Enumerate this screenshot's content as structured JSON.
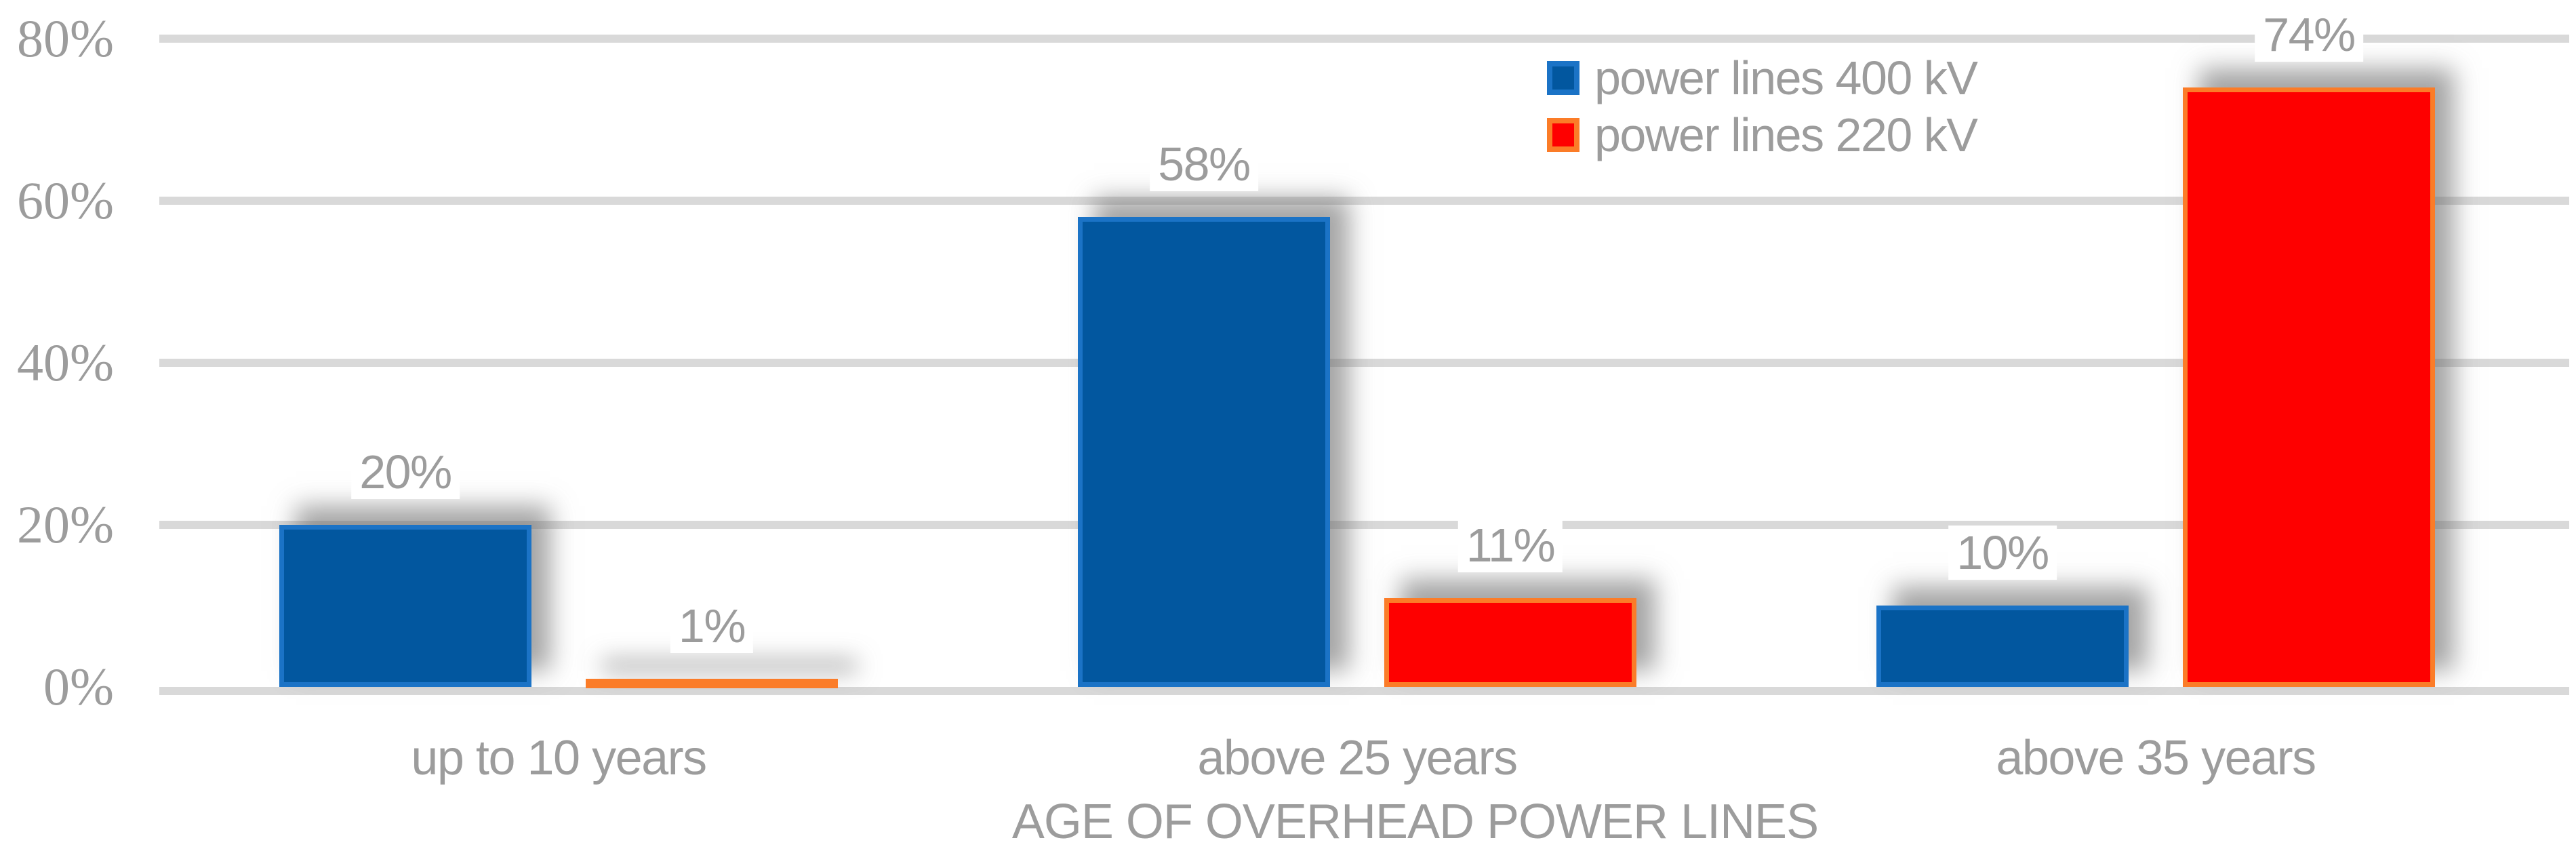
{
  "chart_data": {
    "type": "bar",
    "title": "",
    "xlabel": "AGE OF OVERHEAD POWER LINES",
    "ylabel": "",
    "categories": [
      "up to 10 years",
      "above 25 years",
      "above 35 years"
    ],
    "series": [
      {
        "name": "power lines 400 kV",
        "values": [
          20,
          58,
          10
        ],
        "data_labels": [
          "20%",
          "58%",
          "10%"
        ],
        "fill_color": "#02579F",
        "border_color": "#1B73C6"
      },
      {
        "name": "power lines 220 kV",
        "values": [
          1,
          11,
          74
        ],
        "data_labels": [
          "1%",
          "11%",
          "74%"
        ],
        "fill_color": "#FE0000",
        "border_color": "#FB7C28"
      }
    ],
    "y_axis": {
      "min": 0,
      "max": 80,
      "tick_step": 20,
      "tick_labels": [
        "0%",
        "20%",
        "40%",
        "60%",
        "80%"
      ],
      "grid": true
    },
    "legend_position": "top-right",
    "colors": {
      "text": "#9C9C9C",
      "gridline": "#D9D9D9",
      "background": "#FFFFFF"
    }
  }
}
